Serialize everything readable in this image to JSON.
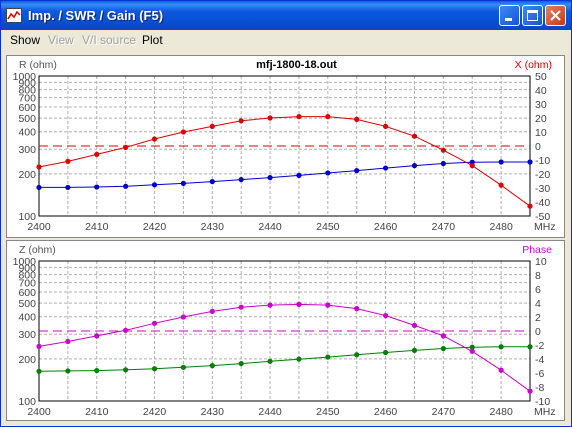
{
  "window": {
    "title": "Imp. / SWR / Gain   (F5)"
  },
  "menu": {
    "items": [
      {
        "label": "Show",
        "enabled": true
      },
      {
        "label": "View",
        "enabled": false
      },
      {
        "label": "V/I source",
        "enabled": false
      },
      {
        "label": "Plot",
        "enabled": true
      }
    ]
  },
  "chart_data": [
    {
      "type": "line",
      "title": "mfj-1800-18.out",
      "xlabel": "MHz",
      "ylabel_left": "R (ohm)",
      "ylabel_right": "X (ohm)",
      "x_ticks": [
        "2400",
        "2410",
        "2420",
        "2430",
        "2440",
        "2450",
        "2460",
        "2470",
        "2480"
      ],
      "xlim": [
        2400,
        2485
      ],
      "left_axis": {
        "scale": "log",
        "ylim": [
          100,
          1000
        ],
        "ticks": [
          "1000",
          "900",
          "800",
          "700",
          "600",
          "500",
          "400",
          "300",
          "200",
          "100"
        ]
      },
      "right_axis": {
        "scale": "linear",
        "ylim": [
          -50,
          50
        ],
        "ticks": [
          "50",
          "40",
          "30",
          "20",
          "10",
          "0",
          "-10",
          "-20",
          "-30",
          "-40",
          "-50"
        ]
      },
      "reference_line": {
        "axis": "right",
        "value": 0,
        "color": "#E00000"
      },
      "series": [
        {
          "axis": "left",
          "color": "#0000CC",
          "x": [
            2400,
            2405,
            2410,
            2415,
            2420,
            2425,
            2430,
            2435,
            2440,
            2445,
            2450,
            2455,
            2460,
            2465,
            2470,
            2475,
            2480,
            2485
          ],
          "y": [
            160,
            160,
            161,
            163,
            167,
            171,
            176,
            182,
            188,
            195,
            203,
            211,
            220,
            229,
            237,
            242,
            243,
            243
          ]
        },
        {
          "axis": "right",
          "color": "#E00000",
          "x": [
            2400,
            2405,
            2410,
            2415,
            2420,
            2425,
            2430,
            2435,
            2440,
            2445,
            2450,
            2455,
            2460,
            2465,
            2470,
            2475,
            2480,
            2485
          ],
          "y": [
            -15,
            -11,
            -6,
            -1,
            5,
            10,
            14,
            18,
            20,
            21,
            21,
            19,
            14,
            7,
            -3,
            -14,
            -28,
            -43
          ]
        }
      ]
    },
    {
      "type": "line",
      "title": "",
      "xlabel": "MHz",
      "ylabel_left": "Z (ohm)",
      "ylabel_right": "Phase",
      "x_ticks": [
        "2400",
        "2410",
        "2420",
        "2430",
        "2440",
        "2450",
        "2460",
        "2470",
        "2480"
      ],
      "xlim": [
        2400,
        2485
      ],
      "left_axis": {
        "scale": "log",
        "ylim": [
          100,
          1000
        ],
        "ticks": [
          "1000",
          "900",
          "800",
          "700",
          "600",
          "500",
          "400",
          "300",
          "200",
          "100"
        ]
      },
      "right_axis": {
        "scale": "linear",
        "ylim": [
          -10,
          10
        ],
        "ticks": [
          "10",
          "8",
          "6",
          "4",
          "2",
          "0",
          "-2",
          "-4",
          "-6",
          "-8",
          "-10"
        ]
      },
      "reference_line": {
        "axis": "right",
        "value": 0,
        "color": "#CC00CC"
      },
      "series": [
        {
          "axis": "left",
          "color": "#008000",
          "x": [
            2400,
            2405,
            2410,
            2415,
            2420,
            2425,
            2430,
            2435,
            2440,
            2445,
            2450,
            2455,
            2460,
            2465,
            2470,
            2475,
            2480,
            2485
          ],
          "y": [
            163,
            164,
            165,
            167,
            170,
            174,
            179,
            185,
            192,
            199,
            206,
            214,
            222,
            230,
            237,
            242,
            244,
            244
          ]
        },
        {
          "axis": "right",
          "color": "#CC00CC",
          "x": [
            2400,
            2405,
            2410,
            2415,
            2420,
            2425,
            2430,
            2435,
            2440,
            2445,
            2450,
            2455,
            2460,
            2465,
            2470,
            2475,
            2480,
            2485
          ],
          "y": [
            -2.2,
            -1.5,
            -0.7,
            0.1,
            1.1,
            2.0,
            2.8,
            3.4,
            3.7,
            3.8,
            3.7,
            3.2,
            2.2,
            0.8,
            -0.7,
            -2.9,
            -5.6,
            -8.6
          ]
        }
      ]
    }
  ]
}
